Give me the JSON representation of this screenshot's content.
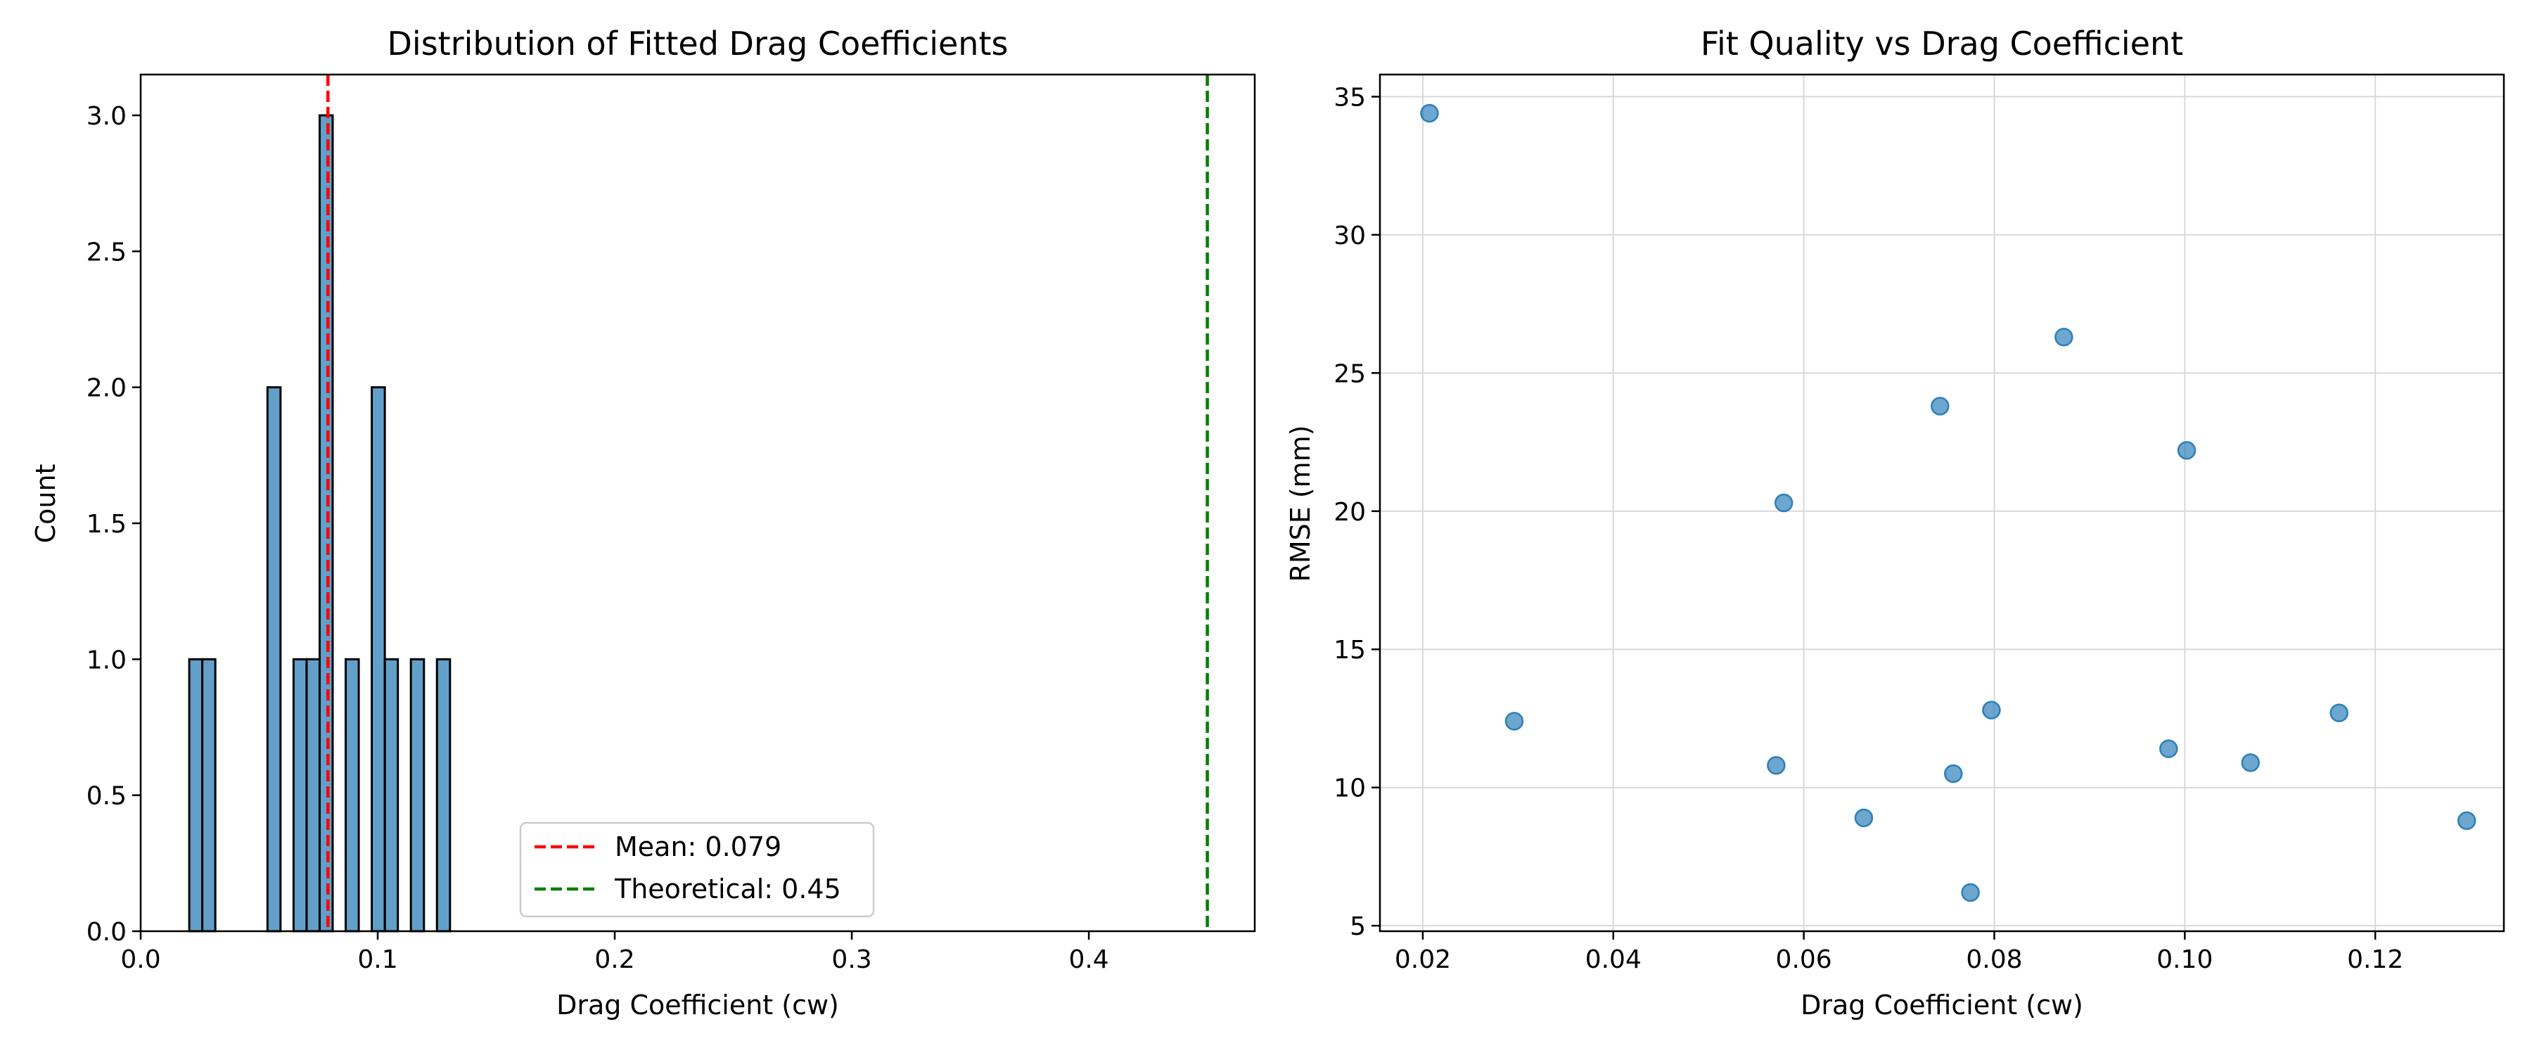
{
  "colors": {
    "bar": "#5b9bd5",
    "bar_fill": "#1f77b4",
    "bar_edge": "#000000",
    "point": "#1f77b4",
    "mean_line": "#ff0000",
    "theory_line": "#008000",
    "grid": "#d9d9d9"
  },
  "chart_data": [
    {
      "type": "bar",
      "title": "Distribution of Fitted Drag Coefficients",
      "xlabel": "Drag Coefficient (cw)",
      "ylabel": "Count",
      "xlim": [
        0.0,
        0.47
      ],
      "ylim": [
        0.0,
        3.15
      ],
      "xticks": [
        0.0,
        0.1,
        0.2,
        0.3,
        0.4
      ],
      "xtick_labels": [
        "0.0",
        "0.1",
        "0.2",
        "0.3",
        "0.4"
      ],
      "yticks": [
        0.0,
        0.5,
        1.0,
        1.5,
        2.0,
        2.5,
        3.0
      ],
      "ytick_labels": [
        "0.0",
        "0.5",
        "1.0",
        "1.5",
        "2.0",
        "2.5",
        "3.0"
      ],
      "grid": false,
      "bin_width": 0.0055,
      "bins": [
        {
          "start": 0.0205,
          "count": 1
        },
        {
          "start": 0.026,
          "count": 1
        },
        {
          "start": 0.0535,
          "count": 2
        },
        {
          "start": 0.0645,
          "count": 1
        },
        {
          "start": 0.07,
          "count": 1
        },
        {
          "start": 0.0755,
          "count": 3
        },
        {
          "start": 0.0865,
          "count": 1
        },
        {
          "start": 0.0975,
          "count": 2
        },
        {
          "start": 0.103,
          "count": 1
        },
        {
          "start": 0.114,
          "count": 1
        },
        {
          "start": 0.125,
          "count": 1
        }
      ],
      "reference_lines": [
        {
          "name": "Mean: 0.079",
          "x": 0.079,
          "style": "dashed",
          "color": "#ff0000"
        },
        {
          "name": "Theoretical: 0.45",
          "x": 0.45,
          "style": "dashed",
          "color": "#008000"
        }
      ],
      "legend": {
        "location": "lower-center",
        "entries": [
          "Mean: 0.079",
          "Theoretical: 0.45"
        ]
      }
    },
    {
      "type": "scatter",
      "title": "Fit Quality vs Drag Coefficient",
      "xlabel": "Drag Coefficient (cw)",
      "ylabel": "RMSE (mm)",
      "xlim": [
        0.0155,
        0.1335
      ],
      "ylim": [
        4.8,
        35.8
      ],
      "xticks": [
        0.02,
        0.04,
        0.06,
        0.08,
        0.1,
        0.12
      ],
      "xtick_labels": [
        "0.02",
        "0.04",
        "0.06",
        "0.08",
        "0.10",
        "0.12"
      ],
      "yticks": [
        5,
        10,
        15,
        20,
        25,
        30,
        35
      ],
      "ytick_labels": [
        "5",
        "10",
        "15",
        "20",
        "25",
        "30",
        "35"
      ],
      "grid": true,
      "points": [
        {
          "x": 0.0207,
          "y": 34.4
        },
        {
          "x": 0.0296,
          "y": 12.4
        },
        {
          "x": 0.0571,
          "y": 10.8
        },
        {
          "x": 0.0579,
          "y": 20.3
        },
        {
          "x": 0.0663,
          "y": 8.9
        },
        {
          "x": 0.0743,
          "y": 23.8
        },
        {
          "x": 0.0757,
          "y": 10.5
        },
        {
          "x": 0.0775,
          "y": 6.2
        },
        {
          "x": 0.0797,
          "y": 12.8
        },
        {
          "x": 0.0873,
          "y": 26.3
        },
        {
          "x": 0.0983,
          "y": 11.4
        },
        {
          "x": 0.1002,
          "y": 22.2
        },
        {
          "x": 0.1069,
          "y": 10.9
        },
        {
          "x": 0.1162,
          "y": 12.7
        },
        {
          "x": 0.1296,
          "y": 8.8
        }
      ]
    }
  ]
}
